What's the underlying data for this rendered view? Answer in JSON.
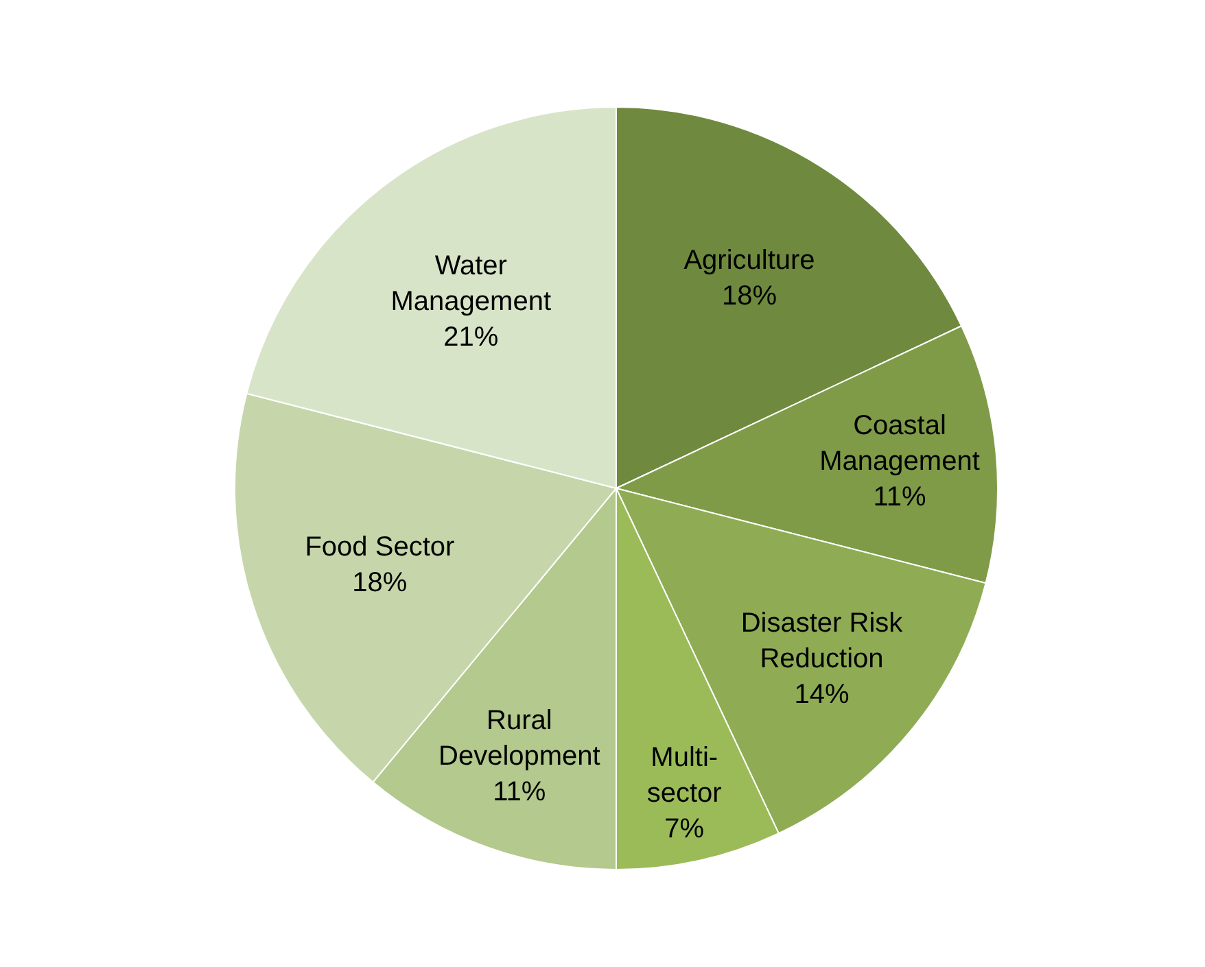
{
  "chart_data": {
    "type": "pie",
    "categories": [
      "Agriculture",
      "Coastal Management",
      "Disaster Risk Reduction",
      "Multi-sector",
      "Rural Development",
      "Food Sector",
      "Water Management"
    ],
    "values": [
      18,
      11,
      14,
      7,
      11,
      18,
      21
    ],
    "value_labels": [
      "18%",
      "11%",
      "14%",
      "7%",
      "11%",
      "18%",
      "21%"
    ],
    "colors": [
      "#6f8a3e",
      "#7f9b48",
      "#8fac54",
      "#9bbb59",
      "#b3c98d",
      "#c6d6aa",
      "#d8e4c8"
    ],
    "legend": false
  }
}
